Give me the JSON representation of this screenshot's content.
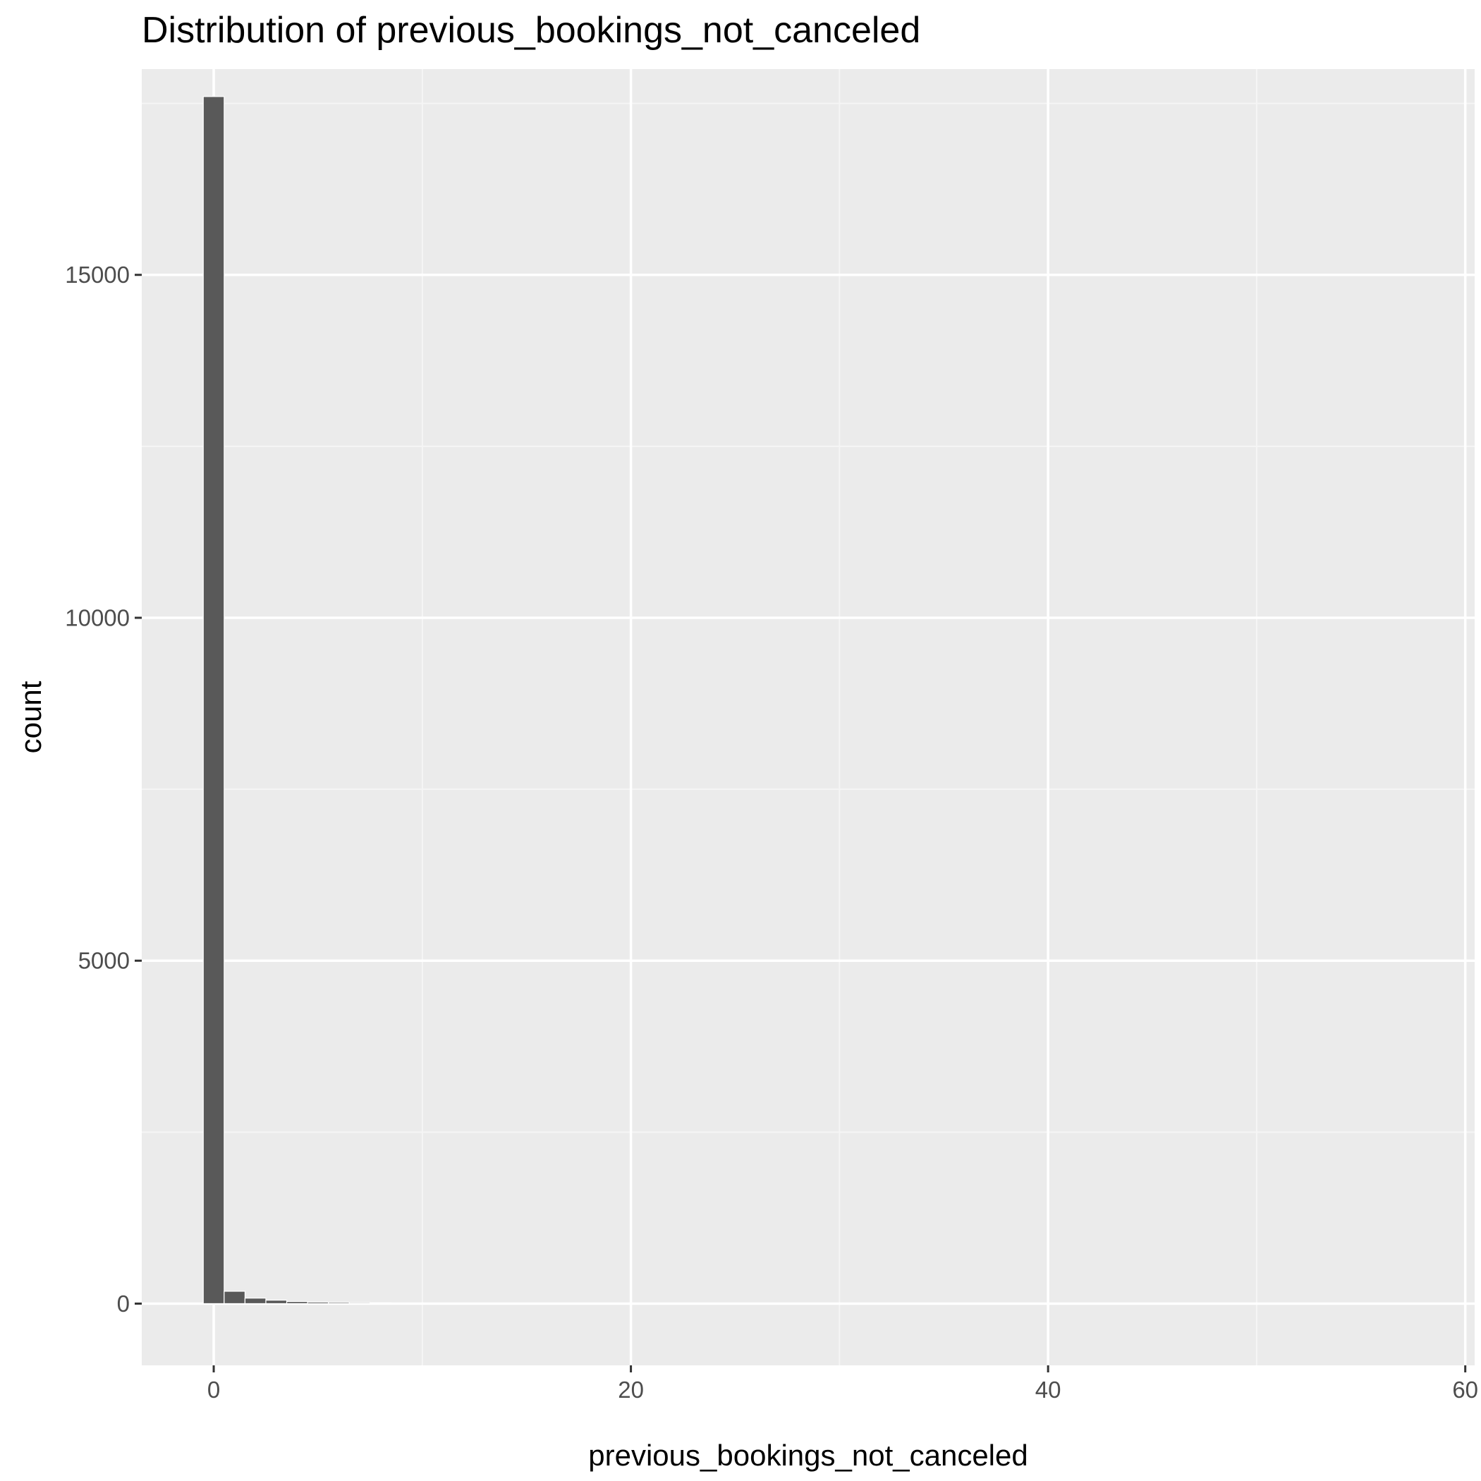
{
  "chart_data": {
    "type": "bar",
    "title": "Distribution of previous_bookings_not_canceled",
    "xlabel": "previous_bookings_not_canceled",
    "ylabel": "count",
    "xlim": [
      -3.45,
      60.45
    ],
    "ylim": [
      -900,
      18000
    ],
    "x_ticks": [
      0,
      20,
      40,
      60
    ],
    "x_tick_labels": [
      "0",
      "20",
      "40",
      "60"
    ],
    "y_ticks": [
      0,
      5000,
      10000,
      15000
    ],
    "y_tick_labels": [
      "0",
      "5000",
      "10000",
      "15000"
    ],
    "grid": true,
    "bin_width": 1,
    "x": [
      0,
      1,
      2,
      3,
      4,
      5,
      6,
      7,
      8,
      9,
      10,
      11,
      12,
      13,
      14,
      15,
      16,
      17,
      18,
      19,
      20,
      21,
      22,
      23,
      24,
      25,
      26,
      27,
      28,
      29,
      30,
      31,
      32,
      33,
      34,
      35,
      36,
      37,
      38,
      39,
      40,
      41,
      42,
      43,
      44,
      45,
      46,
      47,
      48,
      49,
      50,
      51,
      52,
      53,
      54,
      55,
      56,
      57,
      58
    ],
    "values": [
      17600,
      180,
      80,
      50,
      30,
      22,
      18,
      14,
      11,
      9,
      8,
      7,
      6,
      6,
      5,
      5,
      4,
      4,
      3,
      3,
      3,
      3,
      3,
      2,
      2,
      2,
      2,
      2,
      2,
      1,
      1,
      1,
      1,
      1,
      1,
      1,
      1,
      1,
      1,
      1,
      1,
      1,
      1,
      1,
      1,
      1,
      1,
      1,
      1,
      1,
      1,
      1,
      1,
      1,
      1,
      1,
      1,
      1,
      1
    ],
    "colors": {
      "panel_background": "#ebebeb",
      "grid_major": "#ffffff",
      "grid_minor": "#f5f5f5",
      "bar_fill": "#595959",
      "tick_mark": "#333333"
    }
  }
}
